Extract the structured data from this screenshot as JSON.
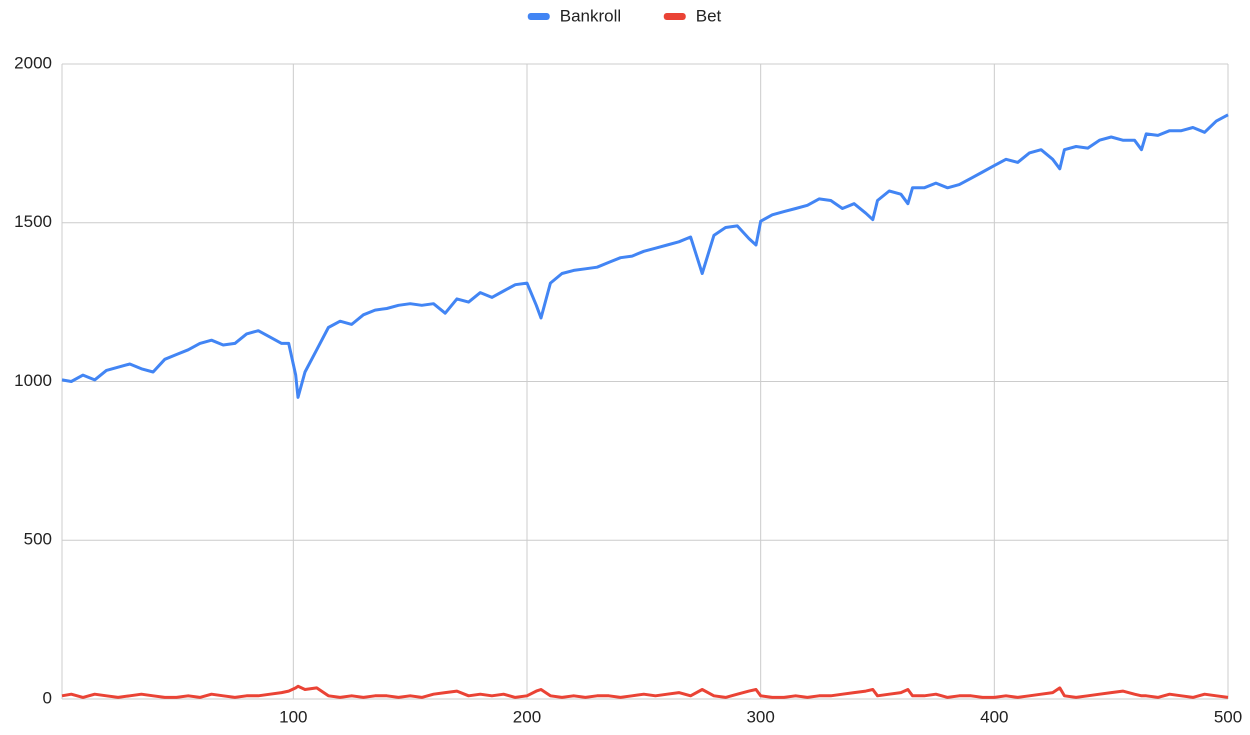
{
  "chart_data": {
    "type": "line",
    "x": [
      1,
      5,
      10,
      15,
      20,
      25,
      30,
      35,
      40,
      45,
      50,
      55,
      60,
      65,
      70,
      75,
      80,
      85,
      90,
      95,
      98,
      101,
      102,
      105,
      110,
      115,
      120,
      125,
      130,
      135,
      140,
      145,
      150,
      155,
      160,
      165,
      170,
      175,
      180,
      185,
      190,
      195,
      200,
      204,
      206,
      210,
      215,
      220,
      225,
      230,
      235,
      240,
      245,
      250,
      255,
      260,
      265,
      270,
      275,
      280,
      285,
      290,
      295,
      298,
      300,
      305,
      310,
      315,
      320,
      325,
      330,
      335,
      340,
      345,
      348,
      350,
      355,
      360,
      363,
      365,
      370,
      375,
      380,
      385,
      390,
      395,
      400,
      405,
      410,
      415,
      420,
      425,
      428,
      430,
      435,
      440,
      445,
      450,
      455,
      460,
      463,
      465,
      470,
      475,
      480,
      485,
      490,
      495,
      500
    ],
    "series": [
      {
        "name": "Bankroll",
        "color": "#4285f4",
        "values": [
          1005,
          1000,
          1020,
          1005,
          1035,
          1045,
          1055,
          1040,
          1030,
          1070,
          1085,
          1100,
          1120,
          1130,
          1115,
          1120,
          1150,
          1160,
          1140,
          1120,
          1120,
          1020,
          950,
          1030,
          1100,
          1170,
          1190,
          1180,
          1210,
          1225,
          1230,
          1240,
          1245,
          1240,
          1245,
          1215,
          1260,
          1250,
          1280,
          1265,
          1285,
          1305,
          1310,
          1240,
          1200,
          1310,
          1340,
          1350,
          1355,
          1360,
          1375,
          1390,
          1395,
          1410,
          1420,
          1430,
          1440,
          1455,
          1340,
          1460,
          1485,
          1490,
          1450,
          1430,
          1505,
          1525,
          1535,
          1545,
          1555,
          1575,
          1570,
          1545,
          1560,
          1530,
          1510,
          1570,
          1600,
          1590,
          1560,
          1610,
          1610,
          1625,
          1610,
          1620,
          1640,
          1660,
          1680,
          1700,
          1690,
          1720,
          1730,
          1700,
          1670,
          1730,
          1740,
          1735,
          1760,
          1770,
          1760,
          1760,
          1730,
          1780,
          1775,
          1790,
          1790,
          1800,
          1785,
          1820,
          1840
        ]
      },
      {
        "name": "Bet",
        "color": "#ea4335",
        "values": [
          10,
          15,
          5,
          15,
          10,
          5,
          10,
          15,
          10,
          5,
          5,
          10,
          5,
          15,
          10,
          5,
          10,
          10,
          15,
          20,
          25,
          35,
          40,
          30,
          35,
          10,
          5,
          10,
          5,
          10,
          10,
          5,
          10,
          5,
          15,
          20,
          25,
          10,
          15,
          10,
          15,
          5,
          10,
          25,
          30,
          10,
          5,
          10,
          5,
          10,
          10,
          5,
          10,
          15,
          10,
          15,
          20,
          10,
          30,
          10,
          5,
          15,
          25,
          30,
          10,
          5,
          5,
          10,
          5,
          10,
          10,
          15,
          20,
          25,
          30,
          10,
          15,
          20,
          30,
          10,
          10,
          15,
          5,
          10,
          10,
          5,
          5,
          10,
          5,
          10,
          15,
          20,
          35,
          10,
          5,
          10,
          15,
          20,
          25,
          15,
          10,
          10,
          5,
          15,
          10,
          5,
          15,
          10,
          5
        ]
      }
    ],
    "xlim": [
      1,
      500
    ],
    "xticks": [
      100,
      200,
      300,
      400,
      500
    ],
    "ylim": [
      0,
      2000
    ],
    "yticks": [
      0,
      500,
      1000,
      1500,
      2000
    ],
    "grid": true,
    "legend": "top"
  }
}
